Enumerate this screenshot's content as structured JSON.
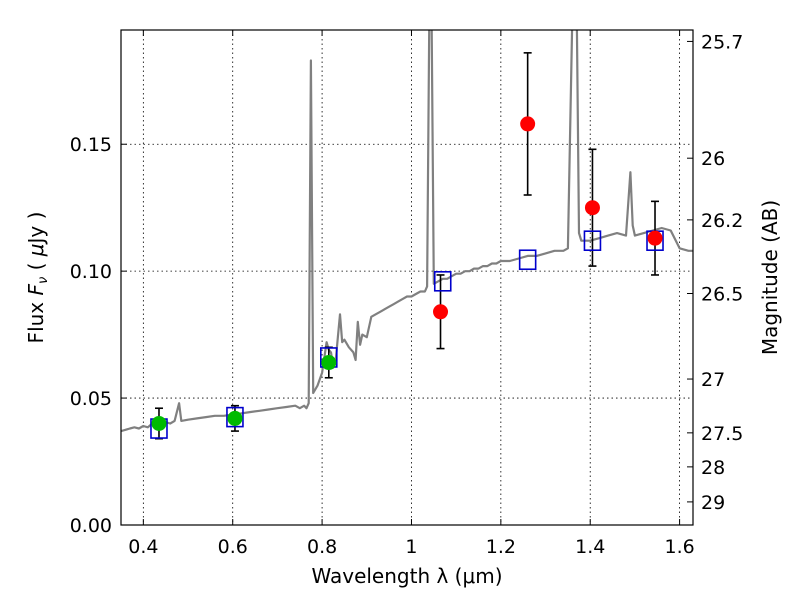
{
  "chart_data": {
    "type": "scatter",
    "xlabel": "Wavelength  λ (μm)",
    "ylabel": "Flux  F_ν  ( μJy )",
    "ylabel_parts": [
      "Flux  ",
      "F",
      "ν",
      "  ( ",
      "μ",
      "Jy )"
    ],
    "y2label": "Magnitude (AB)",
    "xlim": [
      0.35,
      1.63
    ],
    "ylim": [
      0.0,
      0.195
    ],
    "grid": true,
    "x_ticks": [
      {
        "value": 0.4,
        "label": "0.4"
      },
      {
        "value": 0.6,
        "label": "0.6"
      },
      {
        "value": 0.8,
        "label": "0.8"
      },
      {
        "value": 1.0,
        "label": "1"
      },
      {
        "value": 1.2,
        "label": "1.2"
      },
      {
        "value": 1.4,
        "label": "1.4"
      },
      {
        "value": 1.6,
        "label": "1.6"
      }
    ],
    "y_ticks": [
      {
        "value": 0.0,
        "label": "0.00"
      },
      {
        "value": 0.05,
        "label": "0.05"
      },
      {
        "value": 0.1,
        "label": "0.10"
      },
      {
        "value": 0.15,
        "label": "0.15"
      }
    ],
    "mag_ticks": [
      {
        "flux": 0.1905,
        "label": "25.7"
      },
      {
        "flux": 0.1445,
        "label": "26"
      },
      {
        "flux": 0.1202,
        "label": "26.2"
      },
      {
        "flux": 0.0912,
        "label": "26.5"
      },
      {
        "flux": 0.0575,
        "label": "27"
      },
      {
        "flux": 0.0363,
        "label": "27.5"
      },
      {
        "flux": 0.0229,
        "label": "28"
      },
      {
        "flux": 0.0091,
        "label": "29"
      }
    ],
    "series": [
      {
        "kind": "model_spectrum",
        "color": "#808080",
        "points": [
          [
            0.35,
            0.037
          ],
          [
            0.36,
            0.0375
          ],
          [
            0.37,
            0.038
          ],
          [
            0.38,
            0.0385
          ],
          [
            0.39,
            0.038
          ],
          [
            0.4,
            0.039
          ],
          [
            0.41,
            0.0385
          ],
          [
            0.42,
            0.04
          ],
          [
            0.43,
            0.0395
          ],
          [
            0.44,
            0.04
          ],
          [
            0.45,
            0.0405
          ],
          [
            0.46,
            0.04
          ],
          [
            0.47,
            0.041
          ],
          [
            0.48,
            0.048
          ],
          [
            0.485,
            0.041
          ],
          [
            0.5,
            0.0415
          ],
          [
            0.52,
            0.042
          ],
          [
            0.54,
            0.0425
          ],
          [
            0.56,
            0.043
          ],
          [
            0.58,
            0.043
          ],
          [
            0.6,
            0.0435
          ],
          [
            0.62,
            0.044
          ],
          [
            0.64,
            0.0445
          ],
          [
            0.66,
            0.045
          ],
          [
            0.68,
            0.0455
          ],
          [
            0.7,
            0.046
          ],
          [
            0.72,
            0.0465
          ],
          [
            0.74,
            0.047
          ],
          [
            0.75,
            0.046
          ],
          [
            0.76,
            0.047
          ],
          [
            0.765,
            0.046
          ],
          [
            0.77,
            0.048
          ],
          [
            0.775,
            0.183
          ],
          [
            0.78,
            0.052
          ],
          [
            0.79,
            0.055
          ],
          [
            0.8,
            0.06
          ],
          [
            0.81,
            0.072
          ],
          [
            0.815,
            0.069
          ],
          [
            0.82,
            0.068
          ],
          [
            0.825,
            0.062
          ],
          [
            0.83,
            0.064
          ],
          [
            0.84,
            0.083
          ],
          [
            0.845,
            0.072
          ],
          [
            0.85,
            0.073
          ],
          [
            0.86,
            0.07
          ],
          [
            0.87,
            0.068
          ],
          [
            0.875,
            0.065
          ],
          [
            0.88,
            0.08
          ],
          [
            0.885,
            0.071
          ],
          [
            0.89,
            0.075
          ],
          [
            0.9,
            0.074
          ],
          [
            0.91,
            0.082
          ],
          [
            0.92,
            0.083
          ],
          [
            0.93,
            0.084
          ],
          [
            0.94,
            0.085
          ],
          [
            0.95,
            0.086
          ],
          [
            0.96,
            0.087
          ],
          [
            0.97,
            0.088
          ],
          [
            0.98,
            0.089
          ],
          [
            0.99,
            0.09
          ],
          [
            1.0,
            0.09
          ],
          [
            1.01,
            0.091
          ],
          [
            1.02,
            0.092
          ],
          [
            1.03,
            0.092
          ],
          [
            1.035,
            0.094
          ],
          [
            1.04,
            0.2
          ],
          [
            1.045,
            0.2
          ],
          [
            1.05,
            0.095
          ],
          [
            1.06,
            0.096
          ],
          [
            1.07,
            0.097
          ],
          [
            1.08,
            0.097
          ],
          [
            1.09,
            0.098
          ],
          [
            1.1,
            0.099
          ],
          [
            1.11,
            0.099
          ],
          [
            1.12,
            0.1
          ],
          [
            1.13,
            0.1
          ],
          [
            1.14,
            0.101
          ],
          [
            1.15,
            0.101
          ],
          [
            1.16,
            0.102
          ],
          [
            1.17,
            0.102
          ],
          [
            1.18,
            0.103
          ],
          [
            1.19,
            0.103
          ],
          [
            1.2,
            0.104
          ],
          [
            1.22,
            0.104
          ],
          [
            1.24,
            0.105
          ],
          [
            1.26,
            0.106
          ],
          [
            1.28,
            0.106
          ],
          [
            1.3,
            0.107
          ],
          [
            1.32,
            0.108
          ],
          [
            1.34,
            0.108
          ],
          [
            1.35,
            0.109
          ],
          [
            1.36,
            0.2
          ],
          [
            1.37,
            0.2
          ],
          [
            1.375,
            0.115
          ],
          [
            1.38,
            0.112
          ],
          [
            1.4,
            0.112
          ],
          [
            1.42,
            0.113
          ],
          [
            1.44,
            0.114
          ],
          [
            1.46,
            0.115
          ],
          [
            1.48,
            0.114
          ],
          [
            1.49,
            0.139
          ],
          [
            1.495,
            0.118
          ],
          [
            1.5,
            0.114
          ],
          [
            1.52,
            0.115
          ],
          [
            1.54,
            0.116
          ],
          [
            1.56,
            0.117
          ],
          [
            1.58,
            0.116
          ],
          [
            1.6,
            0.109
          ],
          [
            1.62,
            0.108
          ],
          [
            1.63,
            0.108
          ]
        ]
      },
      {
        "kind": "model_bandpass",
        "color": "#0000cc",
        "x": [
          0.435,
          0.605,
          0.815,
          1.07,
          1.26,
          1.405,
          1.545
        ],
        "y": [
          0.038,
          0.0425,
          0.066,
          0.096,
          0.1045,
          0.112,
          0.112
        ]
      },
      {
        "kind": "observed_green",
        "color": "#00bb00",
        "x": [
          0.435,
          0.605,
          0.815
        ],
        "y": [
          0.04,
          0.042,
          0.064
        ],
        "yerr": [
          0.006,
          0.005,
          0.006
        ]
      },
      {
        "kind": "observed_red",
        "color": "#ff0000",
        "x": [
          1.065,
          1.26,
          1.405,
          1.545
        ],
        "y": [
          0.084,
          0.158,
          0.125,
          0.113
        ],
        "yerr": [
          0.0145,
          0.028,
          0.023,
          0.0145
        ]
      }
    ]
  }
}
